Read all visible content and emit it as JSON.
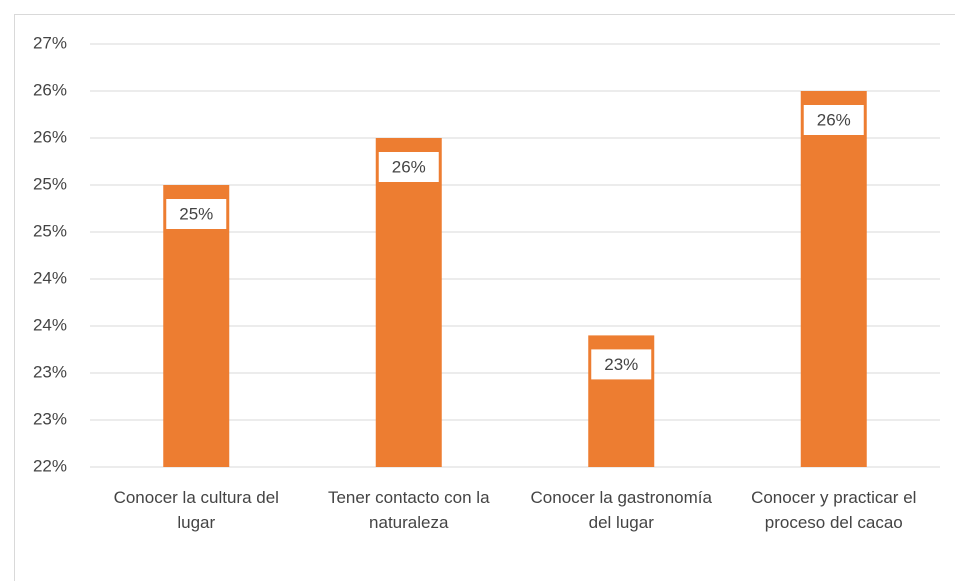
{
  "chart_data": {
    "type": "bar",
    "categories": [
      "Conocer la cultura del lugar",
      "Tener contacto con la naturaleza",
      "Conocer la gastronomía del lugar",
      "Conocer y practicar el proceso del cacao"
    ],
    "values": [
      25.0,
      25.5,
      23.4,
      26.0
    ],
    "value_labels": [
      "25%",
      "26%",
      "23%",
      "26%"
    ],
    "color": "#ed7d31",
    "ylim": [
      22,
      26.5
    ],
    "yticks": [
      {
        "value": 22,
        "label": "22%"
      },
      {
        "value": 22.5,
        "label": "23%"
      },
      {
        "value": 23,
        "label": "23%"
      },
      {
        "value": 23.5,
        "label": "24%"
      },
      {
        "value": 24,
        "label": "24%"
      },
      {
        "value": 24.5,
        "label": "25%"
      },
      {
        "value": 25,
        "label": "25%"
      },
      {
        "value": 25.5,
        "label": "26%"
      },
      {
        "value": 26,
        "label": "26%"
      },
      {
        "value": 26.5,
        "label": "27%"
      }
    ],
    "grid": true
  }
}
